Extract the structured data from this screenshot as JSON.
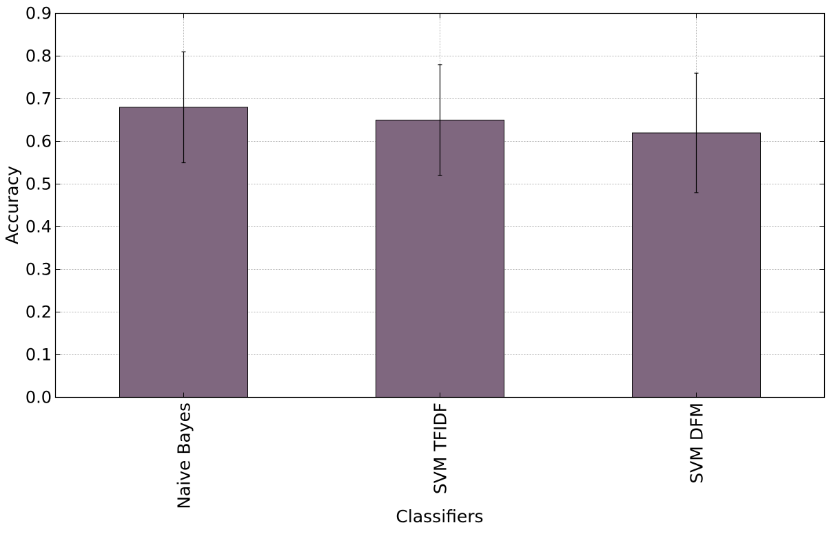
{
  "chart_data": {
    "type": "bar",
    "categories": [
      "Naive Bayes",
      "SVM TFIDF",
      "SVM DFM"
    ],
    "values": [
      0.68,
      0.65,
      0.62
    ],
    "errors": [
      0.13,
      0.13,
      0.14
    ],
    "xlabel": "Classifiers",
    "ylabel": "Accuracy",
    "ylim": [
      0.0,
      0.9
    ],
    "yticks": [
      "0.0",
      "0.1",
      "0.2",
      "0.3",
      "0.4",
      "0.5",
      "0.6",
      "0.7",
      "0.8",
      "0.9"
    ],
    "grid": true,
    "bar_color": "#7f677f"
  }
}
